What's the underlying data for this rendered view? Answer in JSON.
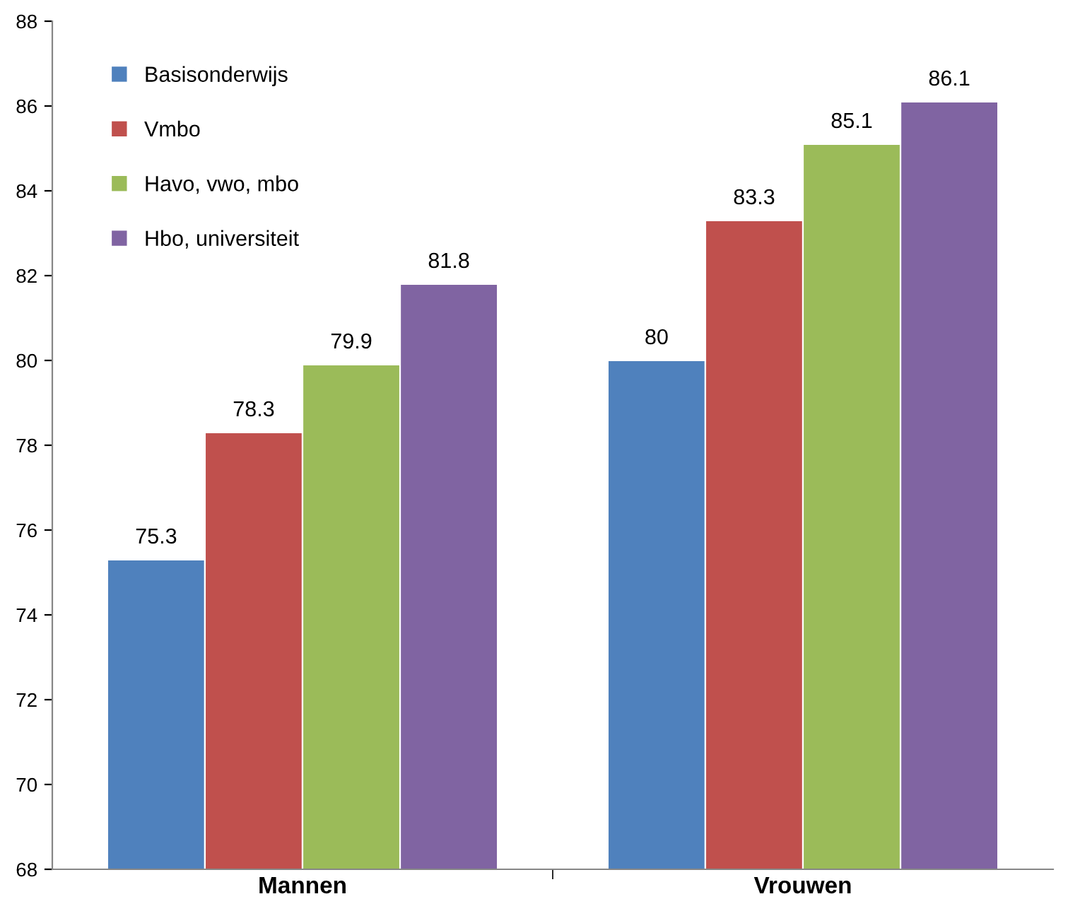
{
  "chart_data": {
    "type": "bar",
    "categories": [
      "Mannen",
      "Vrouwen"
    ],
    "series": [
      {
        "name": "Basisonderwijs",
        "color": "#4f81bd",
        "values": [
          75.3,
          80
        ]
      },
      {
        "name": "Vmbo",
        "color": "#c0504d",
        "values": [
          78.3,
          83.3
        ]
      },
      {
        "name": "Havo, vwo, mbo",
        "color": "#9bbb59",
        "values": [
          79.9,
          85.1
        ]
      },
      {
        "name": "Hbo, universiteit",
        "color": "#8064a2",
        "values": [
          81.8,
          86.1
        ]
      }
    ],
    "ylim": [
      68,
      88
    ],
    "yticks": [
      68,
      70,
      72,
      74,
      76,
      78,
      80,
      82,
      84,
      86,
      88
    ],
    "data_labels": true,
    "grid": false,
    "legend": "top left"
  }
}
